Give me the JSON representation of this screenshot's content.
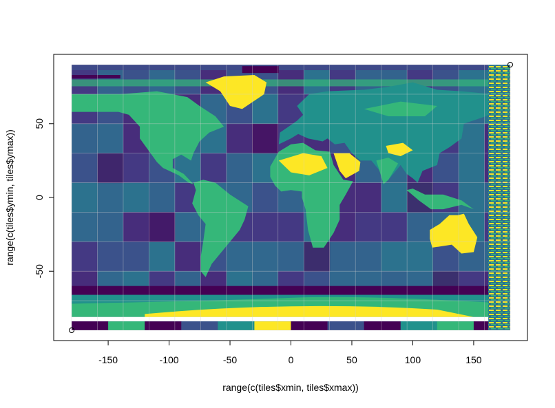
{
  "chart_data": {
    "type": "heatmap",
    "title": "",
    "xlabel": "range(c(tiles$xmin, tiles$xmax))",
    "ylabel": "range(c(tiles$ymin, tiles$ymax))",
    "xlim": [
      -180,
      180
    ],
    "ylim": [
      -90,
      90
    ],
    "x_ticks": [
      -150,
      -100,
      -50,
      0,
      50,
      100,
      150
    ],
    "y_ticks": [
      -50,
      0,
      50
    ],
    "x_tick_labels": [
      "-150",
      "-100",
      "-50",
      "0",
      "50",
      "100",
      "150"
    ],
    "y_tick_labels": [
      "-50",
      "0",
      "50"
    ],
    "points": [
      {
        "x": -180,
        "y": -90
      },
      {
        "x": 180,
        "y": 90
      }
    ],
    "colors": {
      "dark": "#440154",
      "blue": "#31688e",
      "teal": "#21918c",
      "green": "#35b779",
      "yellow": "#fde725",
      "grid": "#cfcfcf"
    },
    "grid": true
  }
}
